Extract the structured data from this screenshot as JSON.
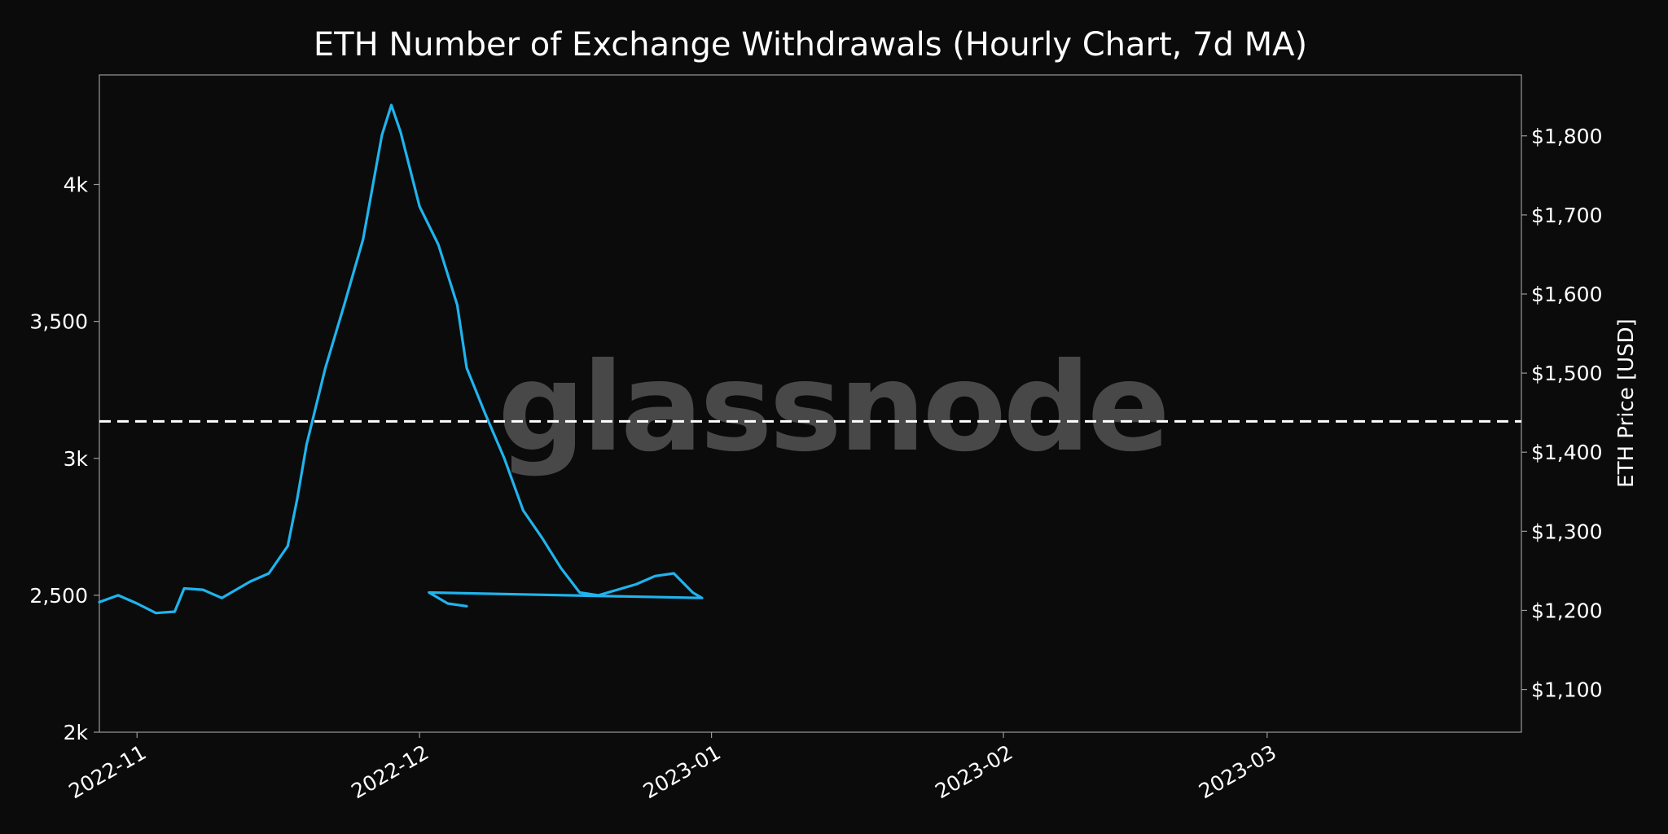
{
  "chart_data": {
    "type": "line",
    "title": "ETH Number of Exchange Withdrawals (Hourly Chart, 7d MA)",
    "watermark": "glassnode",
    "x_axis": {
      "range": [
        "2022-10-28",
        "2023-03-28"
      ],
      "ticks": [
        {
          "date": "2022-11-01",
          "label": "2022-11"
        },
        {
          "date": "2022-12-01",
          "label": "2022-12"
        },
        {
          "date": "2023-01-01",
          "label": "2023-01"
        },
        {
          "date": "2023-02-01",
          "label": "2023-02"
        },
        {
          "date": "2023-03-01",
          "label": "2023-03"
        }
      ]
    },
    "y_left": {
      "range": [
        2000,
        4400
      ],
      "ticks": [
        {
          "value": 2000,
          "label": "2k"
        },
        {
          "value": 2500,
          "label": "2,500"
        },
        {
          "value": 3000,
          "label": "3k"
        },
        {
          "value": 3500,
          "label": "3,500"
        },
        {
          "value": 4000,
          "label": "4k"
        }
      ]
    },
    "y_right": {
      "label": "ETH Price [USD]",
      "range": [
        1046,
        1877
      ],
      "ticks": [
        {
          "value": 1100,
          "label": "$1,100"
        },
        {
          "value": 1200,
          "label": "$1,200"
        },
        {
          "value": 1300,
          "label": "$1,300"
        },
        {
          "value": 1400,
          "label": "$1,400"
        },
        {
          "value": 1500,
          "label": "$1,500"
        },
        {
          "value": 1600,
          "label": "$1,600"
        },
        {
          "value": 1700,
          "label": "$1,700"
        },
        {
          "value": 1800,
          "label": "$1,800"
        }
      ]
    },
    "reference_line": {
      "axis": "left",
      "value": 3135,
      "style": "dashed",
      "color": "#ffffff"
    },
    "series": [
      {
        "axis": "left",
        "color": "#1fb4ee",
        "points": [
          [
            "2022-10-28",
            2475
          ],
          [
            "2022-10-30",
            2500
          ],
          [
            "2022-11-01",
            2470
          ],
          [
            "2022-11-03",
            2435
          ],
          [
            "2022-11-05",
            2440
          ],
          [
            "2022-11-06",
            2525
          ],
          [
            "2022-11-08",
            2520
          ],
          [
            "2022-11-10",
            2490
          ],
          [
            "2022-11-13",
            2550
          ],
          [
            "2022-11-15",
            2580
          ],
          [
            "2022-11-17",
            2680
          ],
          [
            "2022-11-18",
            2850
          ],
          [
            "2022-11-19",
            3050
          ],
          [
            "2022-11-21",
            3330
          ],
          [
            "2022-11-23",
            3560
          ],
          [
            "2022-11-25",
            3800
          ],
          [
            "2022-11-27",
            4180
          ],
          [
            "2022-11-28",
            4290
          ],
          [
            "2022-11-29",
            4190
          ],
          [
            "2022-12-01",
            3920
          ],
          [
            "2022-12-03",
            3780
          ],
          [
            "2022-12-05",
            3560
          ],
          [
            "2022-12-06",
            3330
          ],
          [
            "2022-12-08",
            3160
          ],
          [
            "2022-12-10",
            3000
          ],
          [
            "2022-12-12",
            2810
          ],
          [
            "2022-12-14",
            2710
          ],
          [
            "2022-12-16",
            2600
          ],
          [
            "2022-12-18",
            2510
          ],
          [
            "2022-12-20",
            2500
          ],
          [
            "2022-12-22",
            2520
          ],
          [
            "2022-12-24",
            2540
          ],
          [
            "2022-12-26",
            2570
          ],
          [
            "2022-12-28",
            2580
          ],
          [
            "2022-12-30",
            2510
          ],
          [
            "2022-12-31",
            2490
          ],
          [
            "2022-12-02",
            2510
          ],
          [
            "2022-12-04",
            2470
          ],
          [
            "2022-12-06",
            2460
          ]
        ]
      }
    ]
  }
}
